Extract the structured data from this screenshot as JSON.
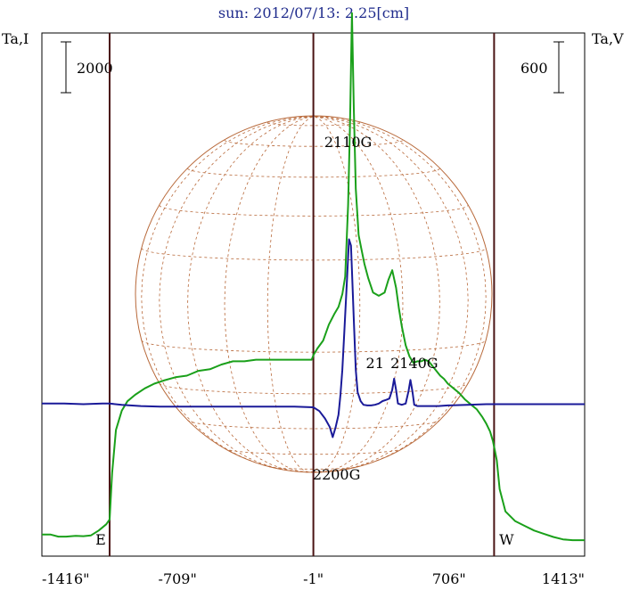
{
  "chart_data": {
    "type": "line",
    "title": "sun: 2012/07/13: 2.25[cm]",
    "left_axis_label": "Ta,I",
    "right_axis_label": "Ta,V",
    "left_scale_bar_label": "2000",
    "right_scale_bar_label": "600",
    "x_tick_labels": [
      "-1416\"",
      "-709\"",
      "-1\"",
      "706\"",
      "1413\""
    ],
    "x_ticks": [
      -1416,
      -709,
      -1,
      706,
      1413
    ],
    "xlim": [
      -1416,
      1413
    ],
    "limb_markers": [
      {
        "label": "E",
        "x": -1063
      },
      {
        "label": "",
        "x": -1
      },
      {
        "label": "W",
        "x": 941
      }
    ],
    "annotations": [
      {
        "text": "2110G",
        "x": 180
      },
      {
        "text": "21",
        "x": 320
      },
      {
        "text": "2140G",
        "x": 525
      },
      {
        "text": "2200G",
        "x": 120
      }
    ],
    "series": [
      {
        "color": "#1aa01a",
        "x": [
          -1416,
          -1370,
          -1330,
          -1290,
          -1240,
          -1200,
          -1160,
          -1120,
          -1080,
          -1063,
          -1050,
          -1030,
          -1000,
          -970,
          -930,
          -880,
          -830,
          -780,
          -720,
          -660,
          -600,
          -540,
          -480,
          -420,
          -360,
          -300,
          -250,
          -200,
          -150,
          -100,
          -50,
          -10,
          0,
          20,
          50,
          80,
          110,
          130,
          150,
          165,
          180,
          190,
          200,
          210,
          220,
          235,
          250,
          265,
          285,
          310,
          340,
          370,
          390,
          410,
          430,
          445,
          460,
          480,
          500,
          520,
          540,
          560,
          580,
          600,
          620,
          640,
          660,
          680,
          700,
          730,
          760,
          790,
          820,
          850,
          880,
          900,
          920,
          935,
          945,
          955,
          970,
          1000,
          1050,
          1100,
          1150,
          1200,
          1250,
          1300,
          1350,
          1413
        ],
        "values": [
          1.35,
          1.35,
          1.22,
          1.22,
          1.27,
          1.25,
          1.3,
          1.6,
          2.0,
          2.3,
          5.2,
          7.9,
          9.1,
          9.7,
          10.1,
          10.5,
          10.8,
          11.0,
          11.2,
          11.3,
          11.6,
          11.7,
          12.0,
          12.2,
          12.2,
          12.3,
          12.3,
          12.3,
          12.3,
          12.3,
          12.3,
          12.3,
          12.6,
          13.0,
          13.5,
          14.5,
          15.2,
          15.6,
          16.4,
          17.5,
          22.0,
          27.0,
          34.0,
          28.0,
          23.0,
          20.1,
          19.2,
          18.3,
          17.4,
          16.5,
          16.3,
          16.5,
          17.3,
          17.9,
          16.8,
          15.5,
          14.4,
          13.2,
          12.5,
          12.1,
          12.2,
          12.2,
          12.3,
          12.2,
          11.9,
          11.6,
          11.3,
          11.1,
          10.8,
          10.5,
          10.2,
          9.8,
          9.5,
          9.2,
          8.7,
          8.3,
          7.8,
          7.2,
          6.6,
          6.0,
          4.2,
          2.8,
          2.2,
          1.9,
          1.6,
          1.4,
          1.2,
          1.05,
          1.0,
          1.0
        ]
      },
      {
        "color": "#1a1a99",
        "x": [
          -1416,
          -1300,
          -1200,
          -1100,
          -1063,
          -1000,
          -900,
          -800,
          -700,
          -600,
          -500,
          -400,
          -300,
          -200,
          -100,
          -1,
          30,
          60,
          85,
          100,
          115,
          130,
          140,
          150,
          160,
          175,
          185,
          195,
          200,
          210,
          220,
          230,
          245,
          260,
          280,
          300,
          320,
          340,
          360,
          380,
          395,
          410,
          420,
          430,
          440,
          460,
          480,
          495,
          505,
          515,
          525,
          540,
          560,
          580,
          600,
          650,
          700,
          800,
          900,
          1000,
          1100,
          1200,
          1300,
          1413
        ],
        "values": [
          0.3,
          0.3,
          0.25,
          0.3,
          0.3,
          0.2,
          0.1,
          0.05,
          0.05,
          0.05,
          0.05,
          0.05,
          0.05,
          0.05,
          0.05,
          0.0,
          -0.3,
          -0.9,
          -1.6,
          -2.4,
          -1.6,
          -0.6,
          1.0,
          3.0,
          6.0,
          10.5,
          13.5,
          13.0,
          11.0,
          7.0,
          3.0,
          1.2,
          0.5,
          0.2,
          0.15,
          0.15,
          0.2,
          0.3,
          0.5,
          0.6,
          0.7,
          1.4,
          2.3,
          1.4,
          0.3,
          0.2,
          0.3,
          1.3,
          2.2,
          1.3,
          0.2,
          0.1,
          0.1,
          0.1,
          0.1,
          0.1,
          0.15,
          0.2,
          0.25,
          0.25,
          0.25,
          0.25,
          0.25,
          0.25
        ]
      }
    ]
  }
}
